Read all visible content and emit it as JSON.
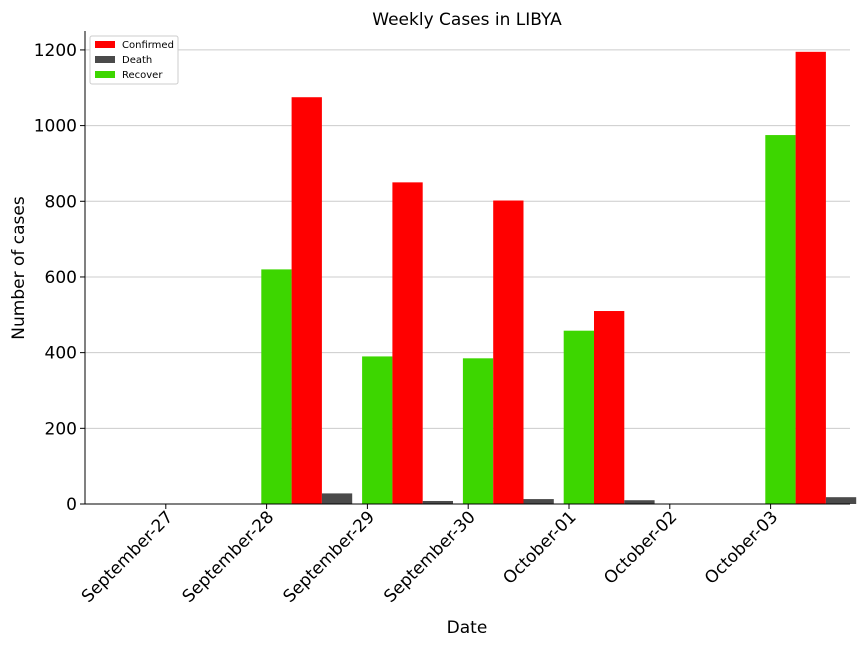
{
  "chart_data": {
    "type": "bar",
    "title": "Weekly Cases in LIBYA",
    "xlabel": "Date",
    "ylabel": "Number of cases",
    "ylim": [
      0,
      1250
    ],
    "yticks": [
      0,
      200,
      400,
      600,
      800,
      1000,
      1200
    ],
    "grid": "horizontal",
    "legend_position": "top-left",
    "categories": [
      "September-27",
      "September-28",
      "September-29",
      "September-30",
      "October-01",
      "October-02",
      "October-03"
    ],
    "series": [
      {
        "name": "Recover",
        "color": "#3dd600",
        "values": [
          0,
          620,
          390,
          385,
          458,
          0,
          975
        ]
      },
      {
        "name": "Confirmed",
        "color": "#ff0000",
        "values": [
          0,
          1075,
          850,
          802,
          510,
          0,
          1195
        ]
      },
      {
        "name": "Death",
        "color": "#4a4a4a",
        "values": [
          0,
          28,
          8,
          13,
          10,
          0,
          18
        ]
      }
    ],
    "legend_order": [
      "Confirmed",
      "Death",
      "Recover"
    ]
  }
}
